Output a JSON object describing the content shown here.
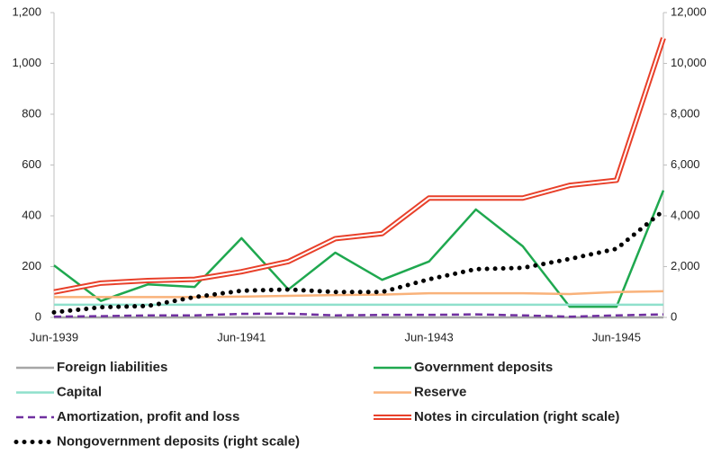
{
  "chart_data": {
    "type": "line",
    "categories": [
      "Jun-1939",
      null,
      null,
      null,
      "Jun-1941",
      null,
      null,
      null,
      "Jun-1943",
      null,
      null,
      null,
      "Jun-1945",
      null
    ],
    "ylim": [
      0,
      1200
    ],
    "yticks": [
      0,
      200,
      400,
      600,
      800,
      {
        "value": 1000,
        "label": "1,000"
      },
      {
        "value": 1200,
        "label": "1,200"
      }
    ],
    "y2lim": [
      0,
      12000
    ],
    "y2ticks": [
      0,
      {
        "value": 2000,
        "label": "2,000"
      },
      {
        "value": 4000,
        "label": "4,000"
      },
      {
        "value": 6000,
        "label": "6,000"
      },
      {
        "value": 8000,
        "label": "8,000"
      },
      {
        "value": 10000,
        "label": "10,000"
      },
      {
        "value": 12000,
        "label": "12,000"
      }
    ],
    "grid": false,
    "series": [
      {
        "name": "Foreign liabilities",
        "color": "#a6a6a6",
        "style": "solid",
        "values": [
          0,
          0,
          0,
          0,
          0,
          0,
          0,
          0,
          0,
          0,
          0,
          0,
          0,
          0
        ]
      },
      {
        "name": "Government deposits",
        "color": "#1fa84f",
        "style": "solid",
        "values": [
          205,
          65,
          130,
          120,
          312,
          110,
          255,
          148,
          220,
          425,
          280,
          42,
          42,
          500
        ]
      },
      {
        "name": "Capital",
        "color": "#8fe0cc",
        "style": "solid",
        "values": [
          50,
          50,
          50,
          50,
          50,
          50,
          50,
          50,
          50,
          50,
          50,
          50,
          50,
          50
        ]
      },
      {
        "name": "Reserve",
        "color": "#f9b27a",
        "style": "solid",
        "values": [
          80,
          80,
          80,
          80,
          82,
          85,
          88,
          90,
          95,
          95,
          95,
          92,
          100,
          103
        ]
      },
      {
        "name": "Amortization, profit and loss",
        "color": "#7030a0",
        "style": "dash",
        "values": [
          3,
          5,
          8,
          8,
          14,
          15,
          8,
          10,
          10,
          12,
          8,
          3,
          8,
          12
        ]
      },
      {
        "name": "Notes in circulation (right scale)",
        "color": "#e8402a",
        "style": "double",
        "axis": "y2",
        "values": [
          1000,
          1350,
          1450,
          1500,
          1800,
          2200,
          3100,
          3300,
          4700,
          4700,
          4700,
          5200,
          5400,
          11000
        ]
      },
      {
        "name": "Nongovernment deposits (right scale)",
        "color": "#000000",
        "style": "dotted",
        "axis": "y2",
        "values": [
          200,
          400,
          450,
          800,
          1050,
          1100,
          1000,
          1000,
          1500,
          1900,
          1950,
          2300,
          2700,
          4200
        ]
      }
    ]
  }
}
